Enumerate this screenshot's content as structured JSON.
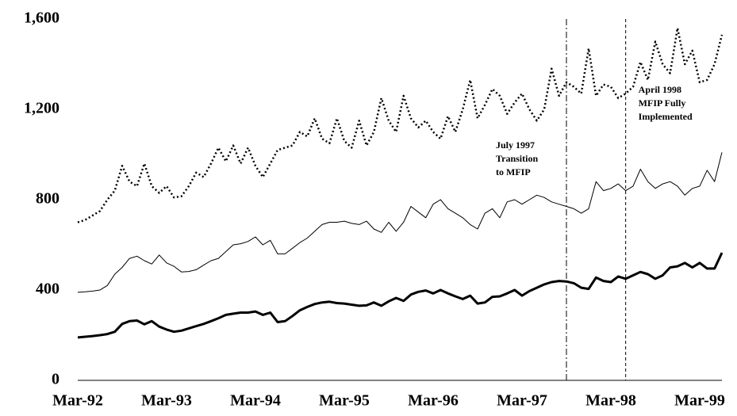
{
  "chart_data": {
    "type": "line",
    "categories": [
      "Mar-92",
      null,
      null,
      null,
      null,
      null,
      null,
      null,
      null,
      null,
      null,
      null,
      "Mar-93",
      null,
      null,
      null,
      null,
      null,
      null,
      null,
      null,
      null,
      null,
      null,
      "Mar-94",
      null,
      null,
      null,
      null,
      null,
      null,
      null,
      null,
      null,
      null,
      null,
      "Mar-95",
      null,
      null,
      null,
      null,
      null,
      null,
      null,
      null,
      null,
      null,
      null,
      "Mar-96",
      null,
      null,
      null,
      null,
      null,
      null,
      null,
      null,
      null,
      null,
      null,
      "Mar-97",
      null,
      null,
      null,
      null,
      null,
      null,
      null,
      null,
      null,
      null,
      null,
      "Mar-98",
      null,
      null,
      null,
      null,
      null,
      null,
      null,
      null,
      null,
      null,
      null,
      "Mar-99",
      null,
      null,
      null
    ],
    "series": [
      {
        "color": "#000000",
        "width": 2.5,
        "style": "dotted",
        "values": [
          700,
          710,
          730,
          750,
          800,
          840,
          950,
          880,
          860,
          960,
          860,
          830,
          860,
          810,
          815,
          860,
          920,
          900,
          960,
          1030,
          970,
          1040,
          960,
          1030,
          950,
          900,
          960,
          1020,
          1030,
          1040,
          1100,
          1080,
          1160,
          1070,
          1050,
          1160,
          1060,
          1030,
          1150,
          1040,
          1100,
          1250,
          1150,
          1100,
          1260,
          1160,
          1120,
          1150,
          1100,
          1070,
          1170,
          1100,
          1200,
          1330,
          1160,
          1220,
          1290,
          1260,
          1180,
          1230,
          1270,
          1200,
          1150,
          1200,
          1380,
          1260,
          1320,
          1300,
          1270,
          1470,
          1260,
          1310,
          1300,
          1250,
          1270,
          1300,
          1410,
          1330,
          1500,
          1400,
          1360,
          1560,
          1400,
          1460,
          1320,
          1330,
          1400,
          1530
        ]
      },
      {
        "color": "#000000",
        "width": 1,
        "style": "solid",
        "values": [
          390,
          392,
          395,
          400,
          420,
          470,
          500,
          540,
          550,
          530,
          515,
          555,
          520,
          505,
          480,
          482,
          490,
          510,
          530,
          540,
          570,
          600,
          605,
          615,
          635,
          600,
          620,
          560,
          560,
          585,
          610,
          630,
          660,
          690,
          700,
          700,
          705,
          695,
          690,
          705,
          670,
          655,
          700,
          660,
          700,
          770,
          745,
          720,
          780,
          800,
          760,
          740,
          720,
          690,
          670,
          740,
          760,
          720,
          790,
          800,
          780,
          800,
          820,
          810,
          790,
          780,
          770,
          760,
          740,
          760,
          880,
          840,
          850,
          870,
          840,
          860,
          935,
          880,
          850,
          870,
          880,
          860,
          820,
          850,
          860,
          930,
          880,
          1010
        ]
      },
      {
        "color": "#000000",
        "width": 3,
        "style": "solid",
        "values": [
          190,
          193,
          196,
          200,
          205,
          215,
          250,
          262,
          265,
          248,
          262,
          238,
          225,
          215,
          220,
          230,
          240,
          250,
          262,
          275,
          290,
          295,
          300,
          300,
          305,
          290,
          300,
          258,
          262,
          285,
          310,
          325,
          338,
          345,
          348,
          342,
          340,
          335,
          330,
          332,
          345,
          330,
          350,
          365,
          352,
          380,
          392,
          398,
          385,
          400,
          385,
          372,
          360,
          375,
          340,
          345,
          370,
          372,
          385,
          400,
          375,
          395,
          410,
          425,
          435,
          440,
          438,
          430,
          410,
          405,
          455,
          440,
          435,
          460,
          450,
          465,
          480,
          470,
          450,
          465,
          500,
          505,
          520,
          500,
          520,
          495,
          495,
          565
        ]
      }
    ],
    "ylim": [
      0,
      1600
    ],
    "yticks": [
      0,
      400,
      800,
      {
        "value": 1200,
        "label": "1,200"
      },
      {
        "value": 1600,
        "label": "1,600"
      }
    ],
    "grid": false,
    "annotations": [
      {
        "category_index": 66,
        "line_style": "dashdot",
        "lines": [
          "July 1997",
          "Transition",
          "to MFIP"
        ]
      },
      {
        "category_index": 74,
        "line_style": "dashed",
        "lines": [
          "April 1998",
          "MFIP Fully",
          "Implemented"
        ]
      }
    ]
  }
}
